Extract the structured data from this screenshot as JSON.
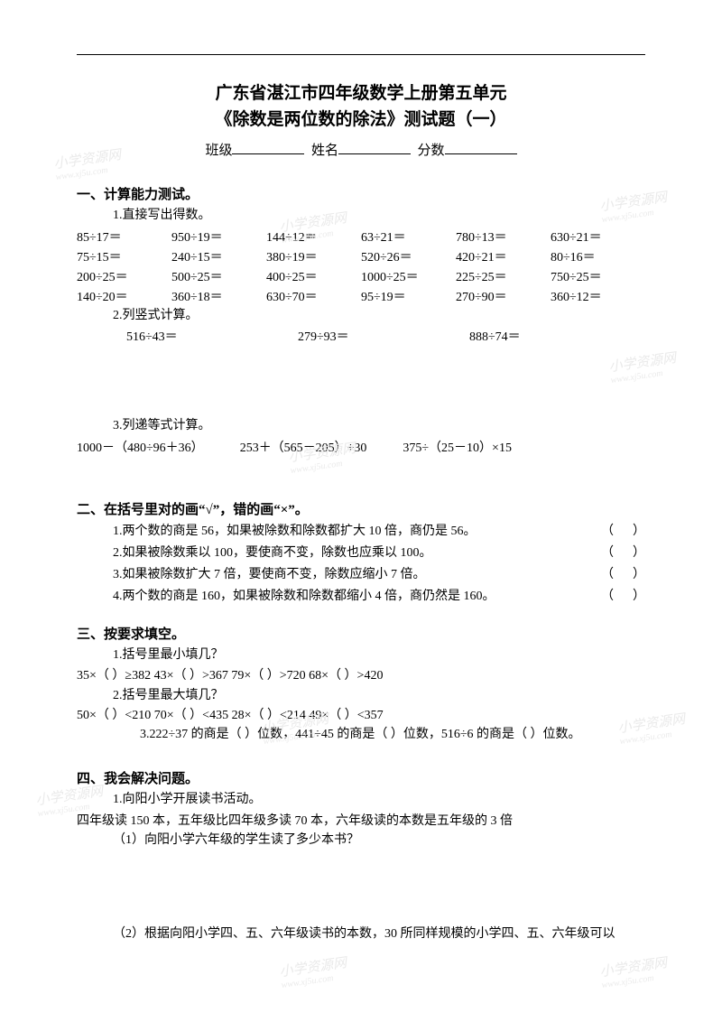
{
  "title": {
    "line1": "广东省湛江市四年级数学上册第五单元",
    "line2": "《除数是两位数的除法》测试题（一）"
  },
  "student_line": {
    "class_label": "班级",
    "name_label": "姓名",
    "score_label": "分数"
  },
  "section1": {
    "heading": "一、计算能力测试。",
    "sub1": "1.直接写出得数。",
    "calc_rows": [
      [
        "85÷17＝",
        "950÷19＝",
        "144÷12＝",
        "63÷21＝",
        "780÷13＝",
        "630÷21＝"
      ],
      [
        "75÷15＝",
        "240÷15＝",
        "380÷19＝",
        "520÷26＝",
        "420÷21＝",
        "80÷16＝"
      ],
      [
        "200÷25＝",
        "500÷25＝",
        "400÷25＝",
        "1000÷25＝",
        "225÷25＝",
        "750÷25＝"
      ],
      [
        "140÷20＝",
        "360÷18＝",
        "630÷70＝",
        "95÷19＝",
        "270÷90＝",
        "360÷12＝"
      ]
    ],
    "sub2": "2.列竖式计算。",
    "vertical": [
      "516÷43＝",
      "279÷93＝",
      "888÷74＝"
    ],
    "sub3": "3.列递等式计算。",
    "stepwise": [
      "1000－（480÷96＋36）",
      "253＋（565－205）÷30",
      "375÷（25－10）×15"
    ]
  },
  "section2": {
    "heading": "二、在括号里对的画“√”，错的画“×”。",
    "items": [
      "1.两个数的商是 56，如果被除数和除数都扩大 10 倍，商仍是 56。",
      "2.如果被除数乘以 100，要使商不变，除数也应乘以 100。",
      "3.如果被除数扩大 7 倍，要使商不变，除数应缩小 7 倍。",
      "4.两个数的商是 160，如果被除数和除数都缩小 4 倍，商仍然是 160。"
    ],
    "paren": "（      ）"
  },
  "section3": {
    "heading": "三、按要求填空。",
    "sub1": "1.括号里最小填几？",
    "fill1": "35×（      ）≥382    43×（      ）>367    79×（      ）>720    68×（      ）>420",
    "sub2": "2.括号里最大填几？",
    "fill2": "50×（      ）<210    70×（      ）<435    28×（      ）<214    49×（      ）<357",
    "sub3": "3.222÷37 的商是（      ）位数，441÷45 的商是（      ）位数，516÷6 的商是（      ）位数。"
  },
  "section4": {
    "heading": "四、我会解决问题。",
    "sub1": "1.向阳小学开展读书活动。",
    "line1": "四年级读 150 本，五年级比四年级多读 70 本，六年级读的本数是五年级的 3 倍",
    "q1": "（1）向阳小学六年级的学生读了多少本书？",
    "q2": "（2）根据向阳小学四、五、六年级读书的本数，30 所同样规模的小学四、五、六年级可以"
  },
  "watermark": {
    "main": "小学资源网",
    "sub": "www.xj5u.com"
  },
  "colors": {
    "text": "#000000",
    "background": "#ffffff",
    "watermark": "#eaeaea"
  }
}
